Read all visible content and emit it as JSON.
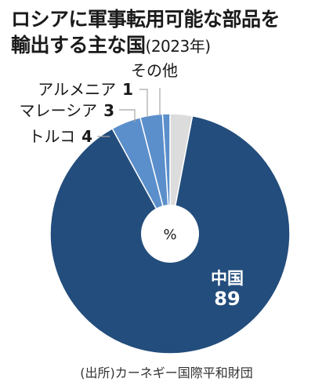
{
  "title": {
    "line1": "ロシアに軍事転用可能な部品を",
    "line2": "輸出する主な国",
    "year": "(2023年)"
  },
  "source": "(出所)カーネギー国際平和財団",
  "colors": {
    "china": "#234d7c",
    "turkey": "#5b8fcb",
    "malaysia": "#5b8fcb",
    "armenia": "#5b8fcb",
    "other": "#dcdcdc",
    "leader": "#a6a6a6"
  },
  "chart_data": {
    "type": "pie",
    "unit": "%",
    "slices": [
      {
        "label": "その他",
        "value": 3,
        "color": "#dcdcdc"
      },
      {
        "label": "中国",
        "value": 89,
        "color": "#234d7c"
      },
      {
        "label": "トルコ",
        "value": 4,
        "color": "#5b8fcb"
      },
      {
        "label": "マレーシア",
        "value": 3,
        "color": "#5b8fcb"
      },
      {
        "label": "アルメニア",
        "value": 1,
        "color": "#5b8fcb"
      }
    ]
  }
}
